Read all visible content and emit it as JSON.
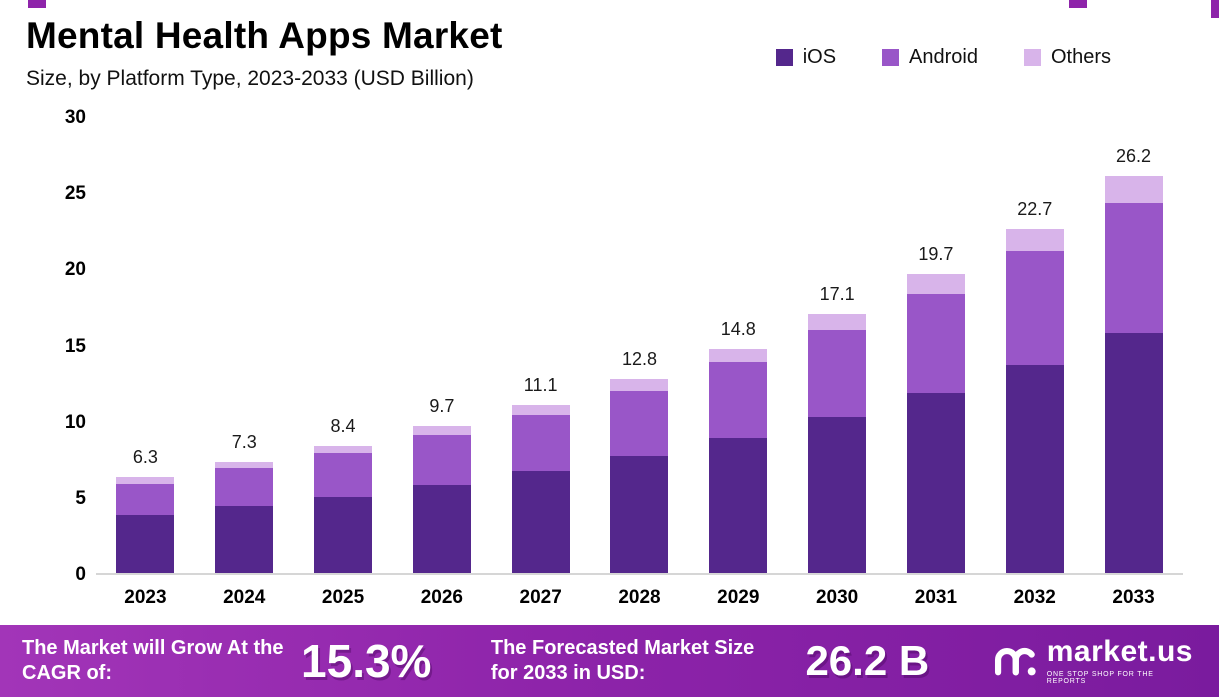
{
  "header": {
    "title": "Mental Health Apps Market",
    "subtitle": "Size, by Platform Type, 2023-2033 (USD Billion)"
  },
  "legend": [
    {
      "label": "iOS",
      "color": "#54278c"
    },
    {
      "label": "Android",
      "color": "#9956c8"
    },
    {
      "label": "Others",
      "color": "#d8b4ea"
    }
  ],
  "chart_data": {
    "type": "bar",
    "stacked": true,
    "title": "Mental Health Apps Market Size, by Platform Type, 2023-2033 (USD Billion)",
    "xlabel": "",
    "ylabel": "USD Billion",
    "ylim": [
      0,
      30
    ],
    "yticks": [
      0,
      5,
      10,
      15,
      20,
      25,
      30
    ],
    "grid": false,
    "legend_position": "top-right",
    "categories": [
      "2023",
      "2024",
      "2025",
      "2026",
      "2027",
      "2028",
      "2029",
      "2030",
      "2031",
      "2032",
      "2033"
    ],
    "series": [
      {
        "name": "iOS",
        "color": "#54278c",
        "values": [
          3.8,
          4.4,
          5.0,
          5.8,
          6.7,
          7.7,
          8.9,
          10.3,
          11.9,
          13.7,
          15.8
        ]
      },
      {
        "name": "Android",
        "color": "#9956c8",
        "values": [
          2.1,
          2.5,
          2.9,
          3.3,
          3.7,
          4.3,
          5.0,
          5.7,
          6.5,
          7.5,
          8.6
        ]
      },
      {
        "name": "Others",
        "color": "#d8b4ea",
        "values": [
          0.4,
          0.4,
          0.5,
          0.6,
          0.7,
          0.8,
          0.9,
          1.1,
          1.3,
          1.5,
          1.8
        ]
      }
    ],
    "totals": [
      "6.3",
      "7.3",
      "8.4",
      "9.7",
      "11.1",
      "12.8",
      "14.8",
      "17.1",
      "19.7",
      "22.7",
      "26.2"
    ]
  },
  "footer": {
    "cagr_label": "The Market will Grow At the CAGR of:",
    "cagr_value": "15.3%",
    "forecast_label": "The Forecasted Market Size for 2033 in USD:",
    "forecast_value": "26.2 B",
    "brand_name": "market.us",
    "brand_tagline": "ONE STOP SHOP FOR THE REPORTS"
  }
}
